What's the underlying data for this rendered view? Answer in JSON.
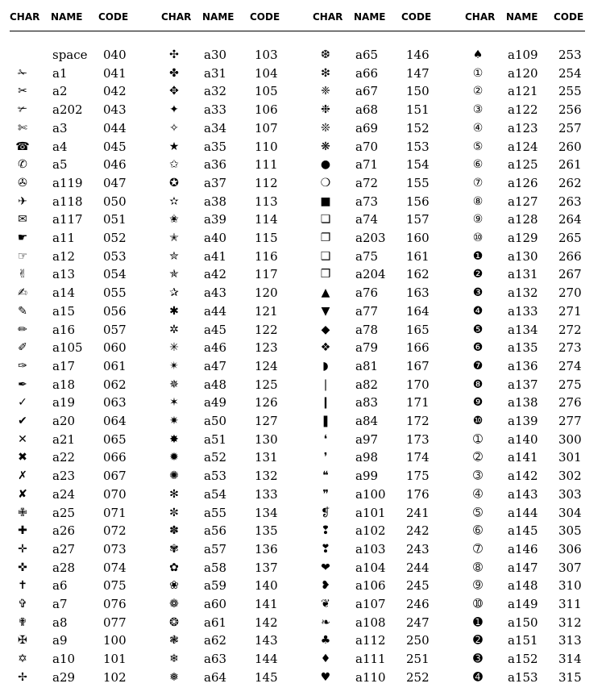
{
  "headers": {
    "char": "CHAR",
    "name": "NAME",
    "code": "CODE"
  },
  "columns": [
    [
      {
        "char": "",
        "name": "space",
        "code": "040"
      },
      {
        "char": "✁",
        "name": "a1",
        "code": "041"
      },
      {
        "char": "✂",
        "name": "a2",
        "code": "042"
      },
      {
        "char": "✃",
        "name": "a202",
        "code": "043"
      },
      {
        "char": "✄",
        "name": "a3",
        "code": "044"
      },
      {
        "char": "☎",
        "name": "a4",
        "code": "045"
      },
      {
        "char": "✆",
        "name": "a5",
        "code": "046"
      },
      {
        "char": "✇",
        "name": "a119",
        "code": "047"
      },
      {
        "char": "✈",
        "name": "a118",
        "code": "050"
      },
      {
        "char": "✉",
        "name": "a117",
        "code": "051"
      },
      {
        "char": "☛",
        "name": "a11",
        "code": "052"
      },
      {
        "char": "☞",
        "name": "a12",
        "code": "053"
      },
      {
        "char": "✌",
        "name": "a13",
        "code": "054"
      },
      {
        "char": "✍",
        "name": "a14",
        "code": "055"
      },
      {
        "char": "✎",
        "name": "a15",
        "code": "056"
      },
      {
        "char": "✏",
        "name": "a16",
        "code": "057"
      },
      {
        "char": "✐",
        "name": "a105",
        "code": "060"
      },
      {
        "char": "✑",
        "name": "a17",
        "code": "061"
      },
      {
        "char": "✒",
        "name": "a18",
        "code": "062"
      },
      {
        "char": "✓",
        "name": "a19",
        "code": "063"
      },
      {
        "char": "✔",
        "name": "a20",
        "code": "064"
      },
      {
        "char": "✕",
        "name": "a21",
        "code": "065"
      },
      {
        "char": "✖",
        "name": "a22",
        "code": "066"
      },
      {
        "char": "✗",
        "name": "a23",
        "code": "067"
      },
      {
        "char": "✘",
        "name": "a24",
        "code": "070"
      },
      {
        "char": "✙",
        "name": "a25",
        "code": "071"
      },
      {
        "char": "✚",
        "name": "a26",
        "code": "072"
      },
      {
        "char": "✛",
        "name": "a27",
        "code": "073"
      },
      {
        "char": "✜",
        "name": "a28",
        "code": "074"
      },
      {
        "char": "✝",
        "name": "a6",
        "code": "075"
      },
      {
        "char": "✞",
        "name": "a7",
        "code": "076"
      },
      {
        "char": "✟",
        "name": "a8",
        "code": "077"
      },
      {
        "char": "✠",
        "name": "a9",
        "code": "100"
      },
      {
        "char": "✡",
        "name": "a10",
        "code": "101"
      },
      {
        "char": "✢",
        "name": "a29",
        "code": "102"
      }
    ],
    [
      {
        "char": "✣",
        "name": "a30",
        "code": "103"
      },
      {
        "char": "✤",
        "name": "a31",
        "code": "104"
      },
      {
        "char": "✥",
        "name": "a32",
        "code": "105"
      },
      {
        "char": "✦",
        "name": "a33",
        "code": "106"
      },
      {
        "char": "✧",
        "name": "a34",
        "code": "107"
      },
      {
        "char": "★",
        "name": "a35",
        "code": "110"
      },
      {
        "char": "✩",
        "name": "a36",
        "code": "111"
      },
      {
        "char": "✪",
        "name": "a37",
        "code": "112"
      },
      {
        "char": "✫",
        "name": "a38",
        "code": "113"
      },
      {
        "char": "✬",
        "name": "a39",
        "code": "114"
      },
      {
        "char": "✭",
        "name": "a40",
        "code": "115"
      },
      {
        "char": "✮",
        "name": "a41",
        "code": "116"
      },
      {
        "char": "✯",
        "name": "a42",
        "code": "117"
      },
      {
        "char": "✰",
        "name": "a43",
        "code": "120"
      },
      {
        "char": "✱",
        "name": "a44",
        "code": "121"
      },
      {
        "char": "✲",
        "name": "a45",
        "code": "122"
      },
      {
        "char": "✳",
        "name": "a46",
        "code": "123"
      },
      {
        "char": "✴",
        "name": "a47",
        "code": "124"
      },
      {
        "char": "✵",
        "name": "a48",
        "code": "125"
      },
      {
        "char": "✶",
        "name": "a49",
        "code": "126"
      },
      {
        "char": "✷",
        "name": "a50",
        "code": "127"
      },
      {
        "char": "✸",
        "name": "a51",
        "code": "130"
      },
      {
        "char": "✹",
        "name": "a52",
        "code": "131"
      },
      {
        "char": "✺",
        "name": "a53",
        "code": "132"
      },
      {
        "char": "✻",
        "name": "a54",
        "code": "133"
      },
      {
        "char": "✼",
        "name": "a55",
        "code": "134"
      },
      {
        "char": "✽",
        "name": "a56",
        "code": "135"
      },
      {
        "char": "✾",
        "name": "a57",
        "code": "136"
      },
      {
        "char": "✿",
        "name": "a58",
        "code": "137"
      },
      {
        "char": "❀",
        "name": "a59",
        "code": "140"
      },
      {
        "char": "❁",
        "name": "a60",
        "code": "141"
      },
      {
        "char": "❂",
        "name": "a61",
        "code": "142"
      },
      {
        "char": "❃",
        "name": "a62",
        "code": "143"
      },
      {
        "char": "❄",
        "name": "a63",
        "code": "144"
      },
      {
        "char": "❅",
        "name": "a64",
        "code": "145"
      }
    ],
    [
      {
        "char": "❆",
        "name": "a65",
        "code": "146"
      },
      {
        "char": "❇",
        "name": "a66",
        "code": "147"
      },
      {
        "char": "❈",
        "name": "a67",
        "code": "150"
      },
      {
        "char": "❉",
        "name": "a68",
        "code": "151"
      },
      {
        "char": "❊",
        "name": "a69",
        "code": "152"
      },
      {
        "char": "❋",
        "name": "a70",
        "code": "153"
      },
      {
        "char": "●",
        "name": "a71",
        "code": "154"
      },
      {
        "char": "❍",
        "name": "a72",
        "code": "155"
      },
      {
        "char": "■",
        "name": "a73",
        "code": "156"
      },
      {
        "char": "❏",
        "name": "a74",
        "code": "157"
      },
      {
        "char": "❐",
        "name": "a203",
        "code": "160"
      },
      {
        "char": "❑",
        "name": "a75",
        "code": "161"
      },
      {
        "char": "❒",
        "name": "a204",
        "code": "162"
      },
      {
        "char": "▲",
        "name": "a76",
        "code": "163"
      },
      {
        "char": "▼",
        "name": "a77",
        "code": "164"
      },
      {
        "char": "◆",
        "name": "a78",
        "code": "165"
      },
      {
        "char": "❖",
        "name": "a79",
        "code": "166"
      },
      {
        "char": "◗",
        "name": "a81",
        "code": "167"
      },
      {
        "char": "❘",
        "name": "a82",
        "code": "170"
      },
      {
        "char": "❙",
        "name": "a83",
        "code": "171"
      },
      {
        "char": "❚",
        "name": "a84",
        "code": "172"
      },
      {
        "char": "❛",
        "name": "a97",
        "code": "173"
      },
      {
        "char": "❜",
        "name": "a98",
        "code": "174"
      },
      {
        "char": "❝",
        "name": "a99",
        "code": "175"
      },
      {
        "char": "❞",
        "name": "a100",
        "code": "176"
      },
      {
        "char": "❡",
        "name": "a101",
        "code": "241"
      },
      {
        "char": "❢",
        "name": "a102",
        "code": "242"
      },
      {
        "char": "❣",
        "name": "a103",
        "code": "243"
      },
      {
        "char": "❤",
        "name": "a104",
        "code": "244"
      },
      {
        "char": "❥",
        "name": "a106",
        "code": "245"
      },
      {
        "char": "❦",
        "name": "a107",
        "code": "246"
      },
      {
        "char": "❧",
        "name": "a108",
        "code": "247"
      },
      {
        "char": "♣",
        "name": "a112",
        "code": "250"
      },
      {
        "char": "♦",
        "name": "a111",
        "code": "251"
      },
      {
        "char": "♥",
        "name": "a110",
        "code": "252"
      }
    ],
    [
      {
        "char": "♠",
        "name": "a109",
        "code": "253"
      },
      {
        "char": "①",
        "name": "a120",
        "code": "254"
      },
      {
        "char": "②",
        "name": "a121",
        "code": "255"
      },
      {
        "char": "③",
        "name": "a122",
        "code": "256"
      },
      {
        "char": "④",
        "name": "a123",
        "code": "257"
      },
      {
        "char": "⑤",
        "name": "a124",
        "code": "260"
      },
      {
        "char": "⑥",
        "name": "a125",
        "code": "261"
      },
      {
        "char": "⑦",
        "name": "a126",
        "code": "262"
      },
      {
        "char": "⑧",
        "name": "a127",
        "code": "263"
      },
      {
        "char": "⑨",
        "name": "a128",
        "code": "264"
      },
      {
        "char": "⑩",
        "name": "a129",
        "code": "265"
      },
      {
        "char": "❶",
        "name": "a130",
        "code": "266"
      },
      {
        "char": "❷",
        "name": "a131",
        "code": "267"
      },
      {
        "char": "❸",
        "name": "a132",
        "code": "270"
      },
      {
        "char": "❹",
        "name": "a133",
        "code": "271"
      },
      {
        "char": "❺",
        "name": "a134",
        "code": "272"
      },
      {
        "char": "❻",
        "name": "a135",
        "code": "273"
      },
      {
        "char": "❼",
        "name": "a136",
        "code": "274"
      },
      {
        "char": "❽",
        "name": "a137",
        "code": "275"
      },
      {
        "char": "❾",
        "name": "a138",
        "code": "276"
      },
      {
        "char": "❿",
        "name": "a139",
        "code": "277"
      },
      {
        "char": "➀",
        "name": "a140",
        "code": "300"
      },
      {
        "char": "➁",
        "name": "a141",
        "code": "301"
      },
      {
        "char": "➂",
        "name": "a142",
        "code": "302"
      },
      {
        "char": "➃",
        "name": "a143",
        "code": "303"
      },
      {
        "char": "➄",
        "name": "a144",
        "code": "304"
      },
      {
        "char": "➅",
        "name": "a145",
        "code": "305"
      },
      {
        "char": "➆",
        "name": "a146",
        "code": "306"
      },
      {
        "char": "➇",
        "name": "a147",
        "code": "307"
      },
      {
        "char": "➈",
        "name": "a148",
        "code": "310"
      },
      {
        "char": "➉",
        "name": "a149",
        "code": "311"
      },
      {
        "char": "➊",
        "name": "a150",
        "code": "312"
      },
      {
        "char": "➋",
        "name": "a151",
        "code": "313"
      },
      {
        "char": "➌",
        "name": "a152",
        "code": "314"
      },
      {
        "char": "➍",
        "name": "a153",
        "code": "315"
      }
    ]
  ]
}
